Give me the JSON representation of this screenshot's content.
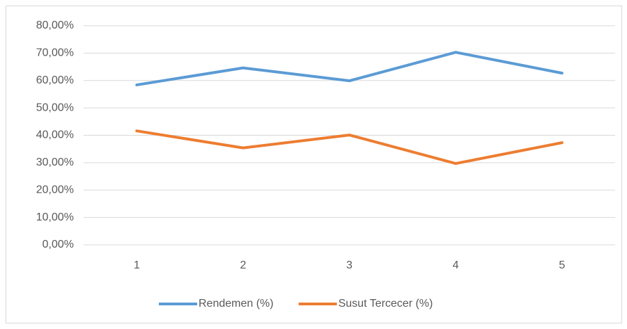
{
  "chart_data": {
    "type": "line",
    "categories": [
      "1",
      "2",
      "3",
      "4",
      "5"
    ],
    "series": [
      {
        "name": "Rendemen (%)",
        "color": "#5b9bd5",
        "values": [
          58.4,
          64.6,
          59.9,
          70.3,
          62.7
        ]
      },
      {
        "name": "Susut Tercecer (%)",
        "color": "#ed7d31",
        "values": [
          41.6,
          35.4,
          40.1,
          29.7,
          37.3
        ]
      }
    ],
    "ylim": [
      0,
      80
    ],
    "yticks": [
      {
        "value": 0,
        "label": "0,00%"
      },
      {
        "value": 10,
        "label": "10,00%"
      },
      {
        "value": 20,
        "label": "20,00%"
      },
      {
        "value": 30,
        "label": "30,00%"
      },
      {
        "value": 40,
        "label": "40,00%"
      },
      {
        "value": 50,
        "label": "50,00%"
      },
      {
        "value": 60,
        "label": "60,00%"
      },
      {
        "value": 70,
        "label": "70,00%"
      },
      {
        "value": 80,
        "label": "80,00%"
      }
    ],
    "grid": true,
    "legend": "bottom"
  }
}
